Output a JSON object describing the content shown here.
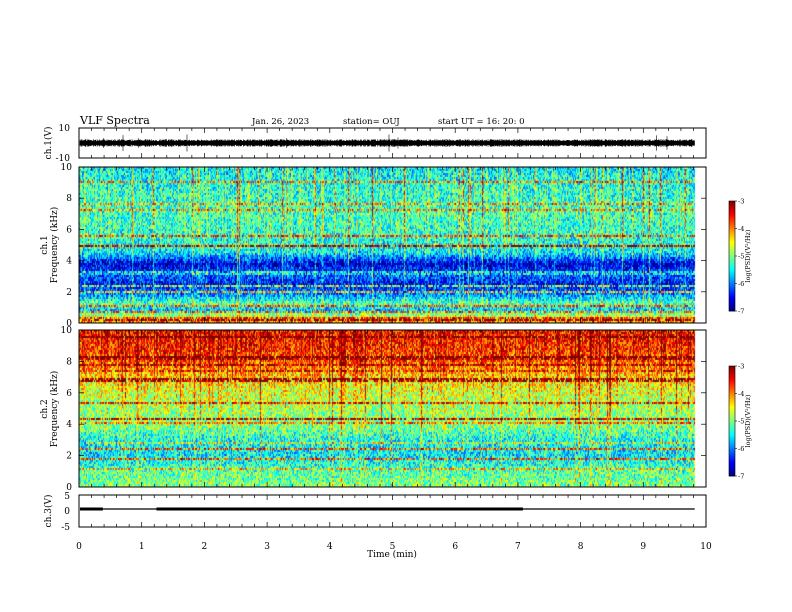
{
  "header": {
    "title": "VLF Spectra",
    "date": "Jan. 26, 2023",
    "station": "station= OUJ",
    "start": "start UT =  16: 20: 0"
  },
  "chart_data": [
    {
      "type": "line",
      "name": "ch1-waveform",
      "ylabel": "ch.1(V)",
      "ylim": [
        -10,
        10
      ],
      "y_ticks": [
        "10",
        "-10"
      ],
      "xlim": [
        0,
        10
      ],
      "baseline_v": 0,
      "noise_amplitude_v": 2.5,
      "data_end_min": 9.82
    },
    {
      "type": "heatmap",
      "name": "ch1-spectrogram",
      "ylabel": "ch.1\nFrequency (kHz)",
      "ylim": [
        0,
        10
      ],
      "y_ticks": [
        "0",
        "2",
        "4",
        "6",
        "8",
        "10"
      ],
      "xlim": [
        0,
        10
      ],
      "data_end_min": 9.82,
      "colorbar": {
        "label": "log(PSD)(V²/Hz)",
        "range": [
          -7,
          -3
        ],
        "ticks": [
          "-3",
          "-4",
          "-5",
          "-6",
          "-7"
        ]
      },
      "frequency_profile": [
        {
          "f": 0.0,
          "v": -4.0
        },
        {
          "f": 0.4,
          "v": -4.6
        },
        {
          "f": 0.8,
          "v": -5.8
        },
        {
          "f": 1.3,
          "v": -5.2
        },
        {
          "f": 1.8,
          "v": -6.0
        },
        {
          "f": 2.5,
          "v": -6.5
        },
        {
          "f": 3.0,
          "v": -6.2
        },
        {
          "f": 3.8,
          "v": -6.7
        },
        {
          "f": 4.5,
          "v": -5.6
        },
        {
          "f": 5.5,
          "v": -5.4
        },
        {
          "f": 7.0,
          "v": -5.3
        },
        {
          "f": 8.5,
          "v": -5.4
        },
        {
          "f": 10.0,
          "v": -5.6
        }
      ]
    },
    {
      "type": "heatmap",
      "name": "ch2-spectrogram",
      "ylabel": "ch.2\nFrequency (kHz)",
      "ylim": [
        0,
        10
      ],
      "y_ticks": [
        "0",
        "2",
        "4",
        "6",
        "8",
        "10"
      ],
      "xlim": [
        0,
        10
      ],
      "data_end_min": 9.82,
      "colorbar": {
        "label": "log(PSD)(V²/Hz)",
        "range": [
          -7,
          -3
        ],
        "ticks": [
          "-3",
          "-4",
          "-5",
          "-6",
          "-7"
        ]
      },
      "frequency_profile": [
        {
          "f": 0.0,
          "v": -5.0
        },
        {
          "f": 1.0,
          "v": -5.2
        },
        {
          "f": 2.0,
          "v": -5.6
        },
        {
          "f": 3.0,
          "v": -5.5
        },
        {
          "f": 4.0,
          "v": -5.0
        },
        {
          "f": 5.0,
          "v": -4.9
        },
        {
          "f": 6.0,
          "v": -4.7
        },
        {
          "f": 7.0,
          "v": -4.4
        },
        {
          "f": 8.0,
          "v": -3.9
        },
        {
          "f": 9.0,
          "v": -3.7
        },
        {
          "f": 10.0,
          "v": -3.6
        }
      ]
    },
    {
      "type": "line",
      "name": "ch3-signal",
      "ylabel": "ch.3(V)",
      "ylim": [
        -5,
        5
      ],
      "y_ticks": [
        "5",
        "0",
        "-5"
      ],
      "xlim": [
        0,
        10
      ],
      "level_v": 0,
      "thick_segments_min": [
        [
          0.0,
          0.38
        ],
        [
          1.22,
          7.08
        ]
      ],
      "data_end_min": 9.82
    }
  ],
  "x_axis": {
    "label": "Time (min)",
    "ticks": [
      "0",
      "1",
      "2",
      "3",
      "4",
      "5",
      "6",
      "7",
      "8",
      "9",
      "10"
    ]
  },
  "colors": {
    "colormap": [
      "#00007f",
      "#0000ff",
      "#007fff",
      "#00ffff",
      "#7fff7f",
      "#ffff00",
      "#ff7f00",
      "#ff0000",
      "#7f0000"
    ]
  }
}
